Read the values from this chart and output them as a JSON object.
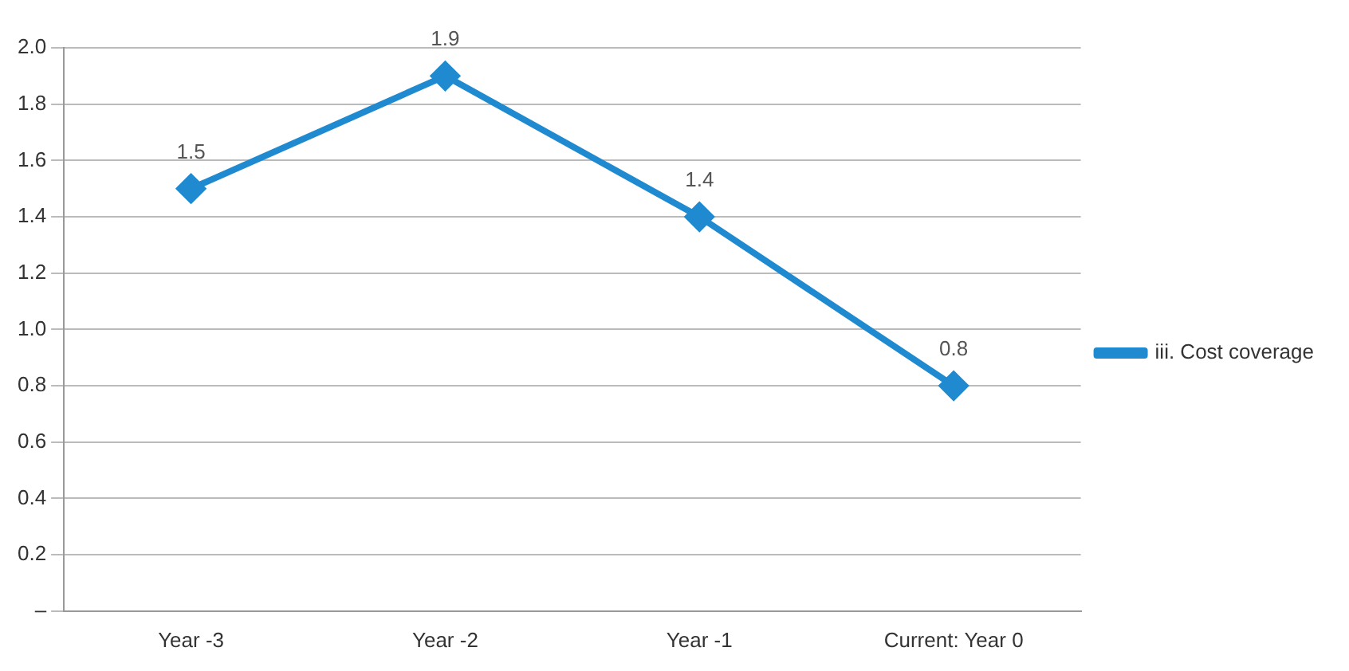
{
  "chart_data": {
    "type": "line",
    "categories": [
      "Year -3",
      "Year -2",
      "Year -1",
      "Current: Year 0"
    ],
    "series": [
      {
        "name": "iii. Cost coverage",
        "color": "#1f8ad0",
        "values": [
          1.5,
          1.9,
          1.4,
          0.8
        ]
      }
    ],
    "ylim": [
      0,
      2
    ],
    "yticks": [
      {
        "value": 0,
        "label": "–"
      },
      {
        "value": 0.2,
        "label": "0.2"
      },
      {
        "value": 0.4,
        "label": "0.4"
      },
      {
        "value": 0.6,
        "label": "0.6"
      },
      {
        "value": 0.8,
        "label": "0.8"
      },
      {
        "value": 1,
        "label": "1.0"
      },
      {
        "value": 1.2,
        "label": "1.2"
      },
      {
        "value": 1.4,
        "label": "1.4"
      },
      {
        "value": 1.6,
        "label": "1.6"
      },
      {
        "value": 1.8,
        "label": "1.8"
      },
      {
        "value": 2,
        "label": "2.0"
      }
    ],
    "grid": "y",
    "legend": "right",
    "marker": "diamond",
    "line_style": "solid",
    "data_labels": true
  }
}
